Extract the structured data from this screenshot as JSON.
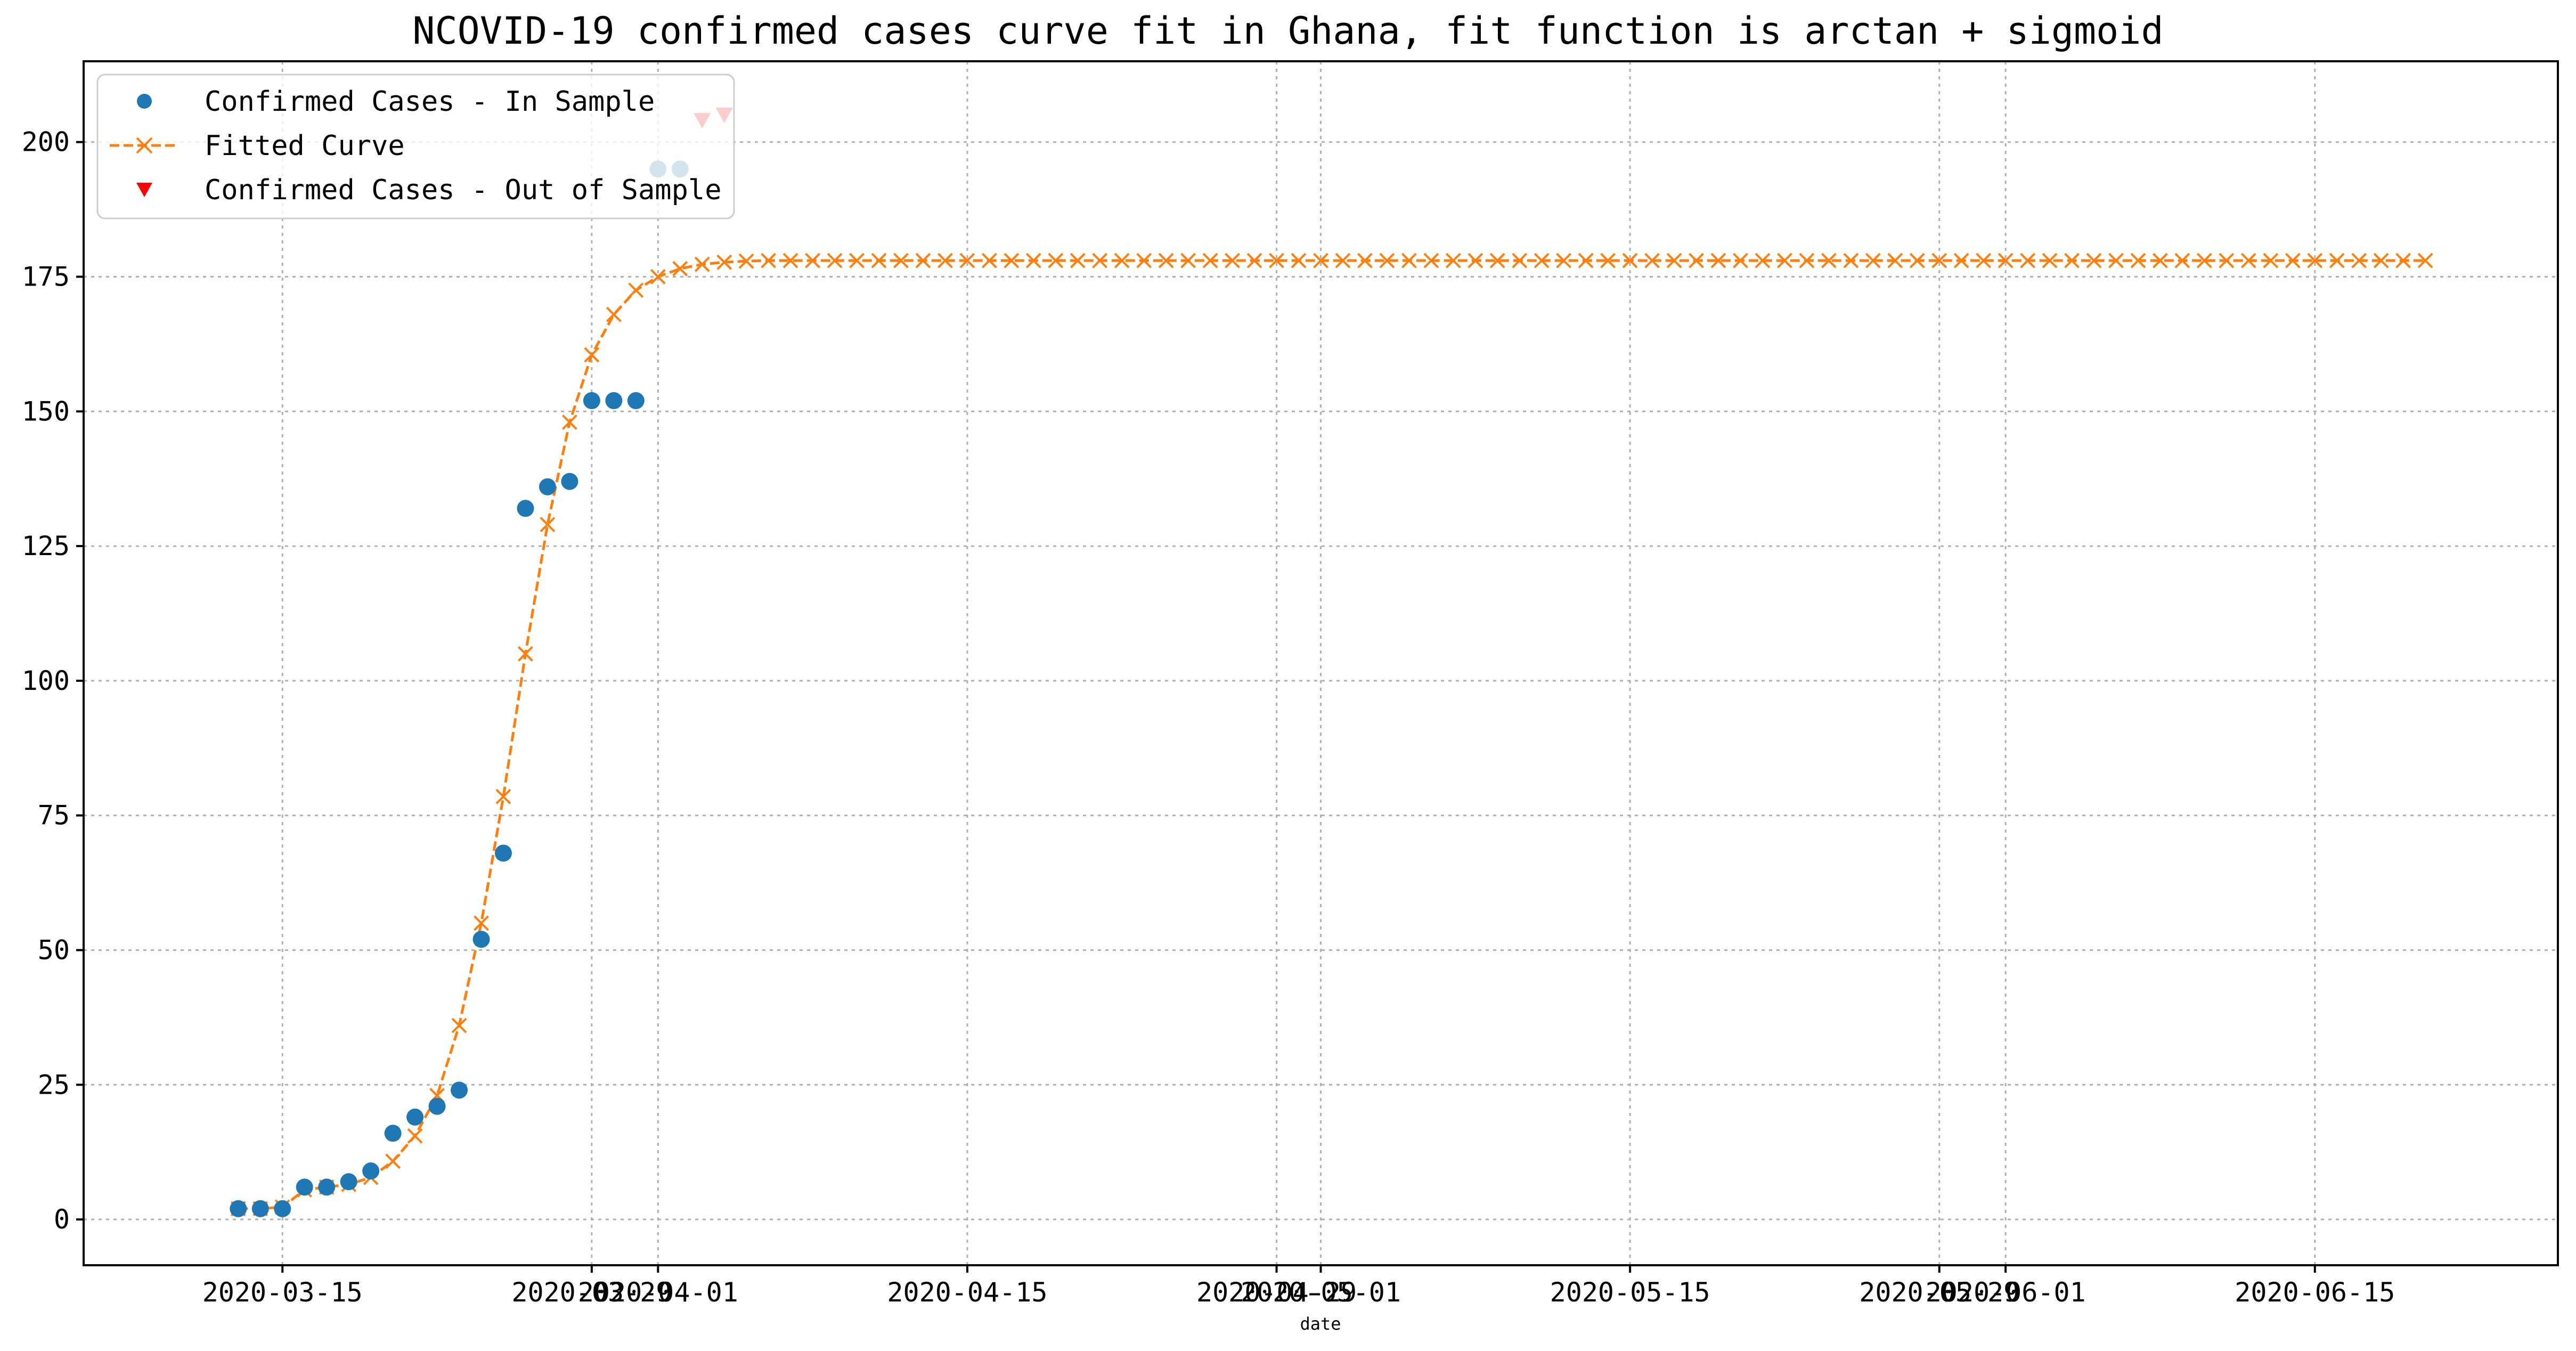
{
  "chart_data": {
    "type": "line",
    "title": "NCOVID-19 confirmed cases curve fit in Ghana, fit function is arctan + sigmoid",
    "xlabel": "date",
    "ylabel": "",
    "ylim": [
      -8.5,
      215
    ],
    "xlim": [
      "2020-03-06",
      "2020-06-26"
    ],
    "grid": true,
    "legend_position": "top-left",
    "y_ticks": [
      0,
      25,
      50,
      75,
      100,
      125,
      150,
      175,
      200
    ],
    "x_ticks": [
      {
        "date": "2020-03-15",
        "label": "2020-03-15"
      },
      {
        "date": "2020-03-29",
        "label": "2020-03-29"
      },
      {
        "date": "2020-04-01",
        "label": "2020-04-01"
      },
      {
        "date": "2020-04-15",
        "label": "2020-04-15"
      },
      {
        "date": "2020-04-29",
        "label": "2020-04-29"
      },
      {
        "date": "2020-05-01",
        "label": "2020-05-01"
      },
      {
        "date": "2020-05-15",
        "label": "2020-05-15"
      },
      {
        "date": "2020-05-29",
        "label": "2020-05-29"
      },
      {
        "date": "2020-06-01",
        "label": "2020-06-01"
      },
      {
        "date": "2020-06-15",
        "label": "2020-06-15"
      }
    ],
    "series": [
      {
        "name": "Confirmed Cases - In Sample",
        "style": "marker-circle",
        "color": "#1f77b4",
        "x": [
          "2020-03-13",
          "2020-03-14",
          "2020-03-15",
          "2020-03-16",
          "2020-03-17",
          "2020-03-18",
          "2020-03-19",
          "2020-03-20",
          "2020-03-21",
          "2020-03-22",
          "2020-03-23",
          "2020-03-24",
          "2020-03-25",
          "2020-03-26",
          "2020-03-27",
          "2020-03-28",
          "2020-03-29",
          "2020-03-30",
          "2020-03-31",
          "2020-04-01",
          "2020-04-02"
        ],
        "y": [
          2,
          2,
          2,
          6,
          6,
          7,
          9,
          16,
          19,
          21,
          24,
          52,
          68,
          132,
          136,
          137,
          152,
          152,
          152,
          195,
          195
        ]
      },
      {
        "name": "Fitted Curve",
        "style": "dashed-line-x-marker",
        "color": "#ff7f0e",
        "start": "2020-03-13",
        "end": "2020-06-20",
        "y": [
          2,
          2,
          2.3,
          5.5,
          6,
          6.5,
          7.8,
          10.8,
          15.5,
          23,
          36,
          55,
          78.5,
          105,
          129,
          148,
          160.5,
          168,
          172.5,
          175,
          176.5,
          177.3,
          177.7,
          177.9,
          178
        ]
      },
      {
        "name": "Confirmed Cases - Out of Sample",
        "style": "marker-triangle-down",
        "color": "#ff0000",
        "x": [
          "2020-04-03",
          "2020-04-04"
        ],
        "y": [
          204,
          205
        ]
      }
    ]
  }
}
